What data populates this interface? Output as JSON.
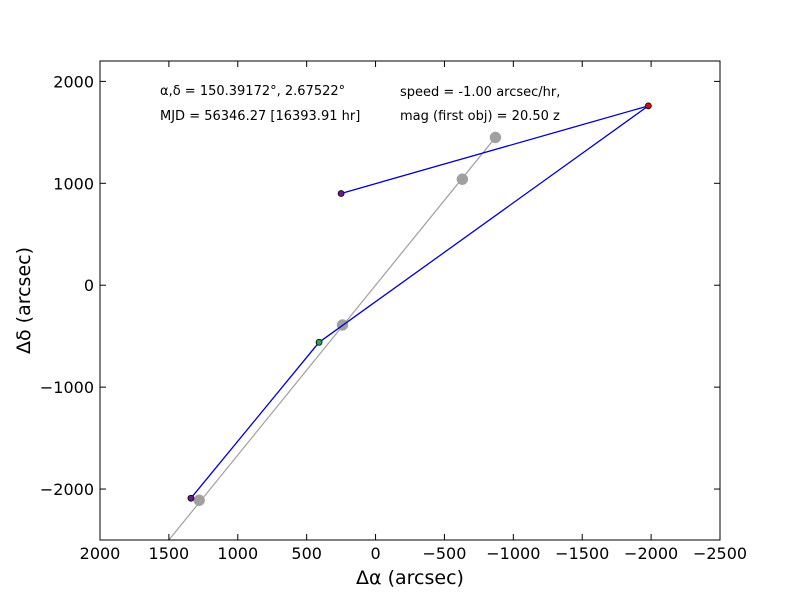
{
  "chart_data": {
    "type": "scatter",
    "xlabel": "Δα (arcsec)",
    "ylabel": "Δδ (arcsec)",
    "xlim": [
      2000,
      -2500
    ],
    "ylim": [
      -2500,
      2200
    ],
    "x_ticks": [
      2000,
      1500,
      1000,
      500,
      0,
      -500,
      -1000,
      -1500,
      -2000,
      -2500
    ],
    "x_tick_labels": [
      "2000",
      "1500",
      "1000",
      "500",
      "0",
      "−500",
      "−1000",
      "−1500",
      "−2000",
      "−2500"
    ],
    "y_ticks": [
      2000,
      1000,
      0,
      -1000,
      -2000
    ],
    "y_tick_labels": [
      "2000",
      "1000",
      "0",
      "−1000",
      "−2000"
    ],
    "grid": false,
    "annotations": {
      "radec": "α,δ = 150.39172°, 2.67522°",
      "mjd": "MJD = 56346.27 [16393.91 hr]",
      "speed": "speed = -1.00 arcsec/hr,",
      "mag": "mag (first obj) = 20.50 z"
    },
    "series": [
      {
        "kind": "track",
        "color": "#a0a0a0",
        "line": [
          {
            "x": 1500,
            "y": -2500
          },
          {
            "x": -870,
            "y": 1450
          }
        ],
        "points": [
          {
            "x": 1280,
            "y": -2110
          },
          {
            "x": 240,
            "y": -390
          },
          {
            "x": -630,
            "y": 1040
          },
          {
            "x": -870,
            "y": 1450
          }
        ]
      },
      {
        "kind": "detections",
        "color": "#0000cc",
        "points": [
          {
            "x": 1340,
            "y": -2090,
            "color": "#6a1a8a"
          },
          {
            "x": 410,
            "y": -560,
            "color": "#22aa55"
          },
          {
            "x": -1980,
            "y": 1760,
            "color": "#cc1111"
          },
          {
            "x": 250,
            "y": 900,
            "color": "#6a1a8a"
          }
        ]
      }
    ]
  }
}
